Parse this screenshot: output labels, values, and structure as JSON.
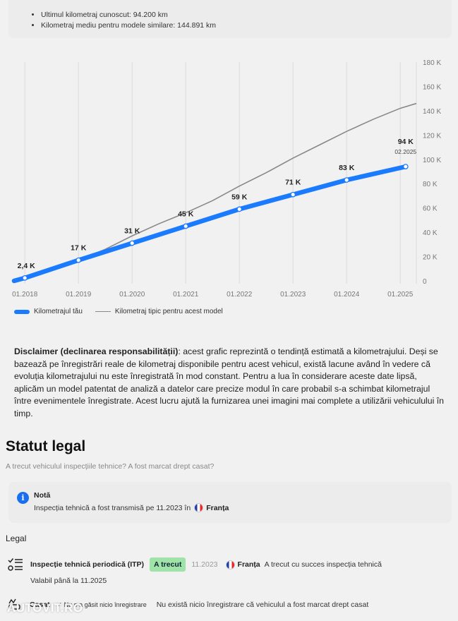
{
  "summary": {
    "items": [
      "Ultimul kilometraj cunoscut: 94.200 km",
      "Kilometraj mediu pentru modele similare: 144.891 km"
    ]
  },
  "chart_data": {
    "type": "line",
    "x": [
      "01.2018",
      "01.2019",
      "01.2020",
      "01.2021",
      "01.2022",
      "01.2023",
      "01.2024",
      "01.2025"
    ],
    "y_ticks": [
      "0",
      "20 K",
      "40 K",
      "60 K",
      "80 K",
      "100 K",
      "120 K",
      "140 K",
      "160 K",
      "180 K"
    ],
    "ylim": [
      0,
      180
    ],
    "series": [
      {
        "name": "Kilometrajul tău",
        "color": "#1a7bff",
        "x": [
          2018.0,
          2019.0,
          2020.0,
          2021.0,
          2022.0,
          2023.0,
          2024.0,
          2025.1
        ],
        "values": [
          2.4,
          17,
          31,
          45,
          59,
          71,
          83,
          94
        ]
      },
      {
        "name": "Kilometraj tipic pentru acest model",
        "color": "#888888",
        "x": [
          2017.8,
          2018.5,
          2019.0,
          2019.5,
          2020.0,
          2020.5,
          2021.0,
          2021.5,
          2022.0,
          2022.5,
          2023.0,
          2023.5,
          2024.0,
          2024.5,
          2025.0,
          2025.3
        ],
        "values": [
          0,
          9,
          17,
          26,
          37,
          47,
          56,
          66,
          78,
          89,
          101,
          112,
          123,
          133,
          142,
          146
        ]
      }
    ],
    "point_labels": [
      "2,4 K",
      "17 K",
      "31 K",
      "45 K",
      "59 K",
      "71 K",
      "83 K",
      "94 K"
    ],
    "last_point_date": "02.2025",
    "grid": "vertical"
  },
  "disclaimer": {
    "title": "Disclaimer (declinarea responsabilității)",
    "text": ": acest grafic reprezintă o tendință estimată a kilometrajului. Deși se bazează pe înregistrări reale de kilometraj disponibile pentru acest vehicul, există lacune având în vedere că evoluția kilometrajului nu este înregistrată în mod constant. Pentru a lua în considerare aceste date lipsă, aplicăm un model patentat de analiză a datelor care precize modul în care probabil s-a schimbat kilometrajul între evenimentele înregistrate. Acest lucru ajută la furnizarea unei imagini mai complete a utilizării vehiculului în timp."
  },
  "legal_status": {
    "title": "Statut legal",
    "subtitle": "A trecut vehiculul inspecțiile tehnice? A fost marcat drept casat?",
    "note": {
      "title": "Notă",
      "text": "Inspecția tehnică a fost transmisă pe 11.2023 în",
      "country": "Franța",
      "icon": "info-icon"
    },
    "legal_label": "Legal",
    "itp": {
      "title": "Inspecție tehnică periodică (ITP)",
      "badge": "A trecut",
      "badge_color": "#9fe3a8",
      "date": "11.2023",
      "country": "Franța",
      "description": "A trecut cu succes inspecția tehnică",
      "valid_until": "Valabil până la 11.2025"
    },
    "casat": {
      "title": "Casat",
      "check": "✓ Nu s-a găsit nicio înregistrare",
      "description": "Nu există nicio înregistrare că vehiculul a fost marcat drept casat"
    }
  },
  "watermark": "AUTOVIT.RO"
}
